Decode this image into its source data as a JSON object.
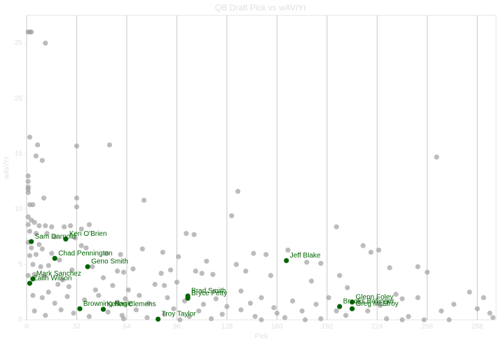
{
  "chart_data": {
    "type": "scatter",
    "title": "QB Draft Pick vs wAV/Yr",
    "x_label": "Pick",
    "y_label": "wAV/Yr",
    "xlim": [
      0,
      300
    ],
    "ylim": [
      0,
      27.5
    ],
    "xticks": [
      0,
      32,
      64,
      96,
      128,
      160,
      192,
      224,
      256,
      288
    ],
    "yticks": [
      0,
      5,
      10,
      15,
      20,
      25
    ],
    "grid": "x",
    "series": [
      {
        "color": "#a0a0a0",
        "x": [
          1,
          2,
          3,
          12,
          2,
          7,
          6,
          10,
          32,
          53,
          262,
          135,
          1,
          1,
          1,
          1,
          1,
          11,
          32,
          75,
          2,
          4,
          32,
          131,
          1,
          3,
          5,
          1,
          8,
          12,
          16,
          24,
          28,
          35,
          40,
          2,
          6,
          13,
          18,
          31,
          102,
          107,
          198,
          1,
          3,
          8,
          10,
          35,
          38,
          74,
          145,
          153,
          167,
          215,
          220,
          225,
          2,
          6,
          16,
          21,
          51,
          60,
          87,
          97,
          115,
          134,
          179,
          188,
          232,
          250,
          256,
          4,
          9,
          14,
          29,
          42,
          58,
          62,
          68,
          86,
          92,
          108,
          112,
          119,
          140,
          156,
          200,
          1,
          5,
          11,
          23,
          49,
          20,
          27,
          44,
          55,
          65,
          82,
          88,
          96,
          137,
          182,
          205,
          236,
          250,
          283,
          292,
          4,
          10,
          14,
          18,
          26,
          37,
          46,
          58,
          63,
          72,
          78,
          90,
          101,
          113,
          121,
          128,
          143,
          150,
          158,
          170,
          185,
          193,
          198,
          212,
          226,
          240,
          265,
          273,
          296,
          5,
          12,
          22,
          30,
          40,
          52,
          61,
          70,
          77,
          88,
          94,
          104,
          110,
          125,
          137,
          146,
          160,
          165,
          176,
          188,
          204,
          218,
          230,
          244,
          254,
          270,
          288,
          298,
          62,
          118,
          150,
          178,
          240,
          98
        ],
        "y": [
          26,
          26,
          26,
          25,
          16.5,
          15.8,
          14.8,
          14.4,
          15.7,
          15.8,
          14.7,
          11.6,
          13,
          12.5,
          12,
          11.8,
          11.5,
          11,
          11,
          10.8,
          10.4,
          10.4,
          10.2,
          9.4,
          9.3,
          9,
          8.8,
          8.6,
          8.5,
          8.5,
          8.4,
          8.4,
          8.5,
          8.2,
          8.6,
          8,
          7.8,
          7.8,
          7.5,
          7.4,
          7.8,
          7.7,
          8.4,
          7,
          6.5,
          6.8,
          6.4,
          6.7,
          6.5,
          6.4,
          6,
          5.9,
          6.3,
          6.7,
          6.1,
          6.3,
          5.8,
          5.9,
          6,
          5.4,
          6,
          5.9,
          6.1,
          5.7,
          5.3,
          5,
          5.2,
          5.1,
          4.7,
          4.8,
          4.3,
          5,
          4.8,
          4.9,
          4.5,
          4.8,
          4.4,
          4.3,
          4.6,
          4.2,
          4.5,
          4.4,
          4.2,
          4.1,
          4.4,
          4,
          4,
          4,
          4.1,
          3.9,
          3.6,
          3.8,
          3.2,
          3,
          2.7,
          3.1,
          2.7,
          3.2,
          3.1,
          3.4,
          2.6,
          3.5,
          2.9,
          2.3,
          2,
          2.5,
          2,
          2.2,
          2,
          2.5,
          1.5,
          2.1,
          1.8,
          2.2,
          1.6,
          1.9,
          2.2,
          1.5,
          2,
          1.7,
          1.4,
          1.9,
          1.2,
          1.5,
          2,
          1.1,
          1.7,
          1.4,
          2,
          0.8,
          1.6,
          1.3,
          1.9,
          0.8,
          1.4,
          0.6,
          0.8,
          0.4,
          0.9,
          0.6,
          0.3,
          0.7,
          0.4,
          0.9,
          0.2,
          0.5,
          1,
          0.3,
          0.8,
          0.5,
          0.9,
          0.3,
          0.6,
          0.2,
          0.8,
          0.1,
          0.4,
          0.8,
          0.1,
          0.3,
          0,
          0,
          1,
          0.2,
          0.1,
          0.1,
          0,
          0,
          0,
          0
        ]
      },
      {
        "color": "#006400",
        "labels": [
          "Sam Darnold",
          "Ken O'Brien",
          "Chad Pennington",
          "Geno Smith",
          "Mark Sanchez",
          "Zach Wilson",
          "Browning Nagle",
          "Kellen Clemens",
          "Troy Taylor",
          "Brad Smith",
          "Bryce Petty",
          "Jeff Blake",
          "Glenn Foley",
          "Brooks Bollinger",
          "Greg McElroy"
        ],
        "x": [
          3,
          25,
          18,
          39,
          4,
          2,
          34,
          49,
          84,
          103,
          103,
          166,
          208,
          200,
          208
        ],
        "y": [
          7.07,
          7.3,
          5.55,
          4.8,
          3.7,
          3.3,
          1.0,
          0.95,
          0.06,
          2.15,
          1.95,
          5.35,
          1.6,
          1.2,
          1.0
        ]
      }
    ]
  }
}
